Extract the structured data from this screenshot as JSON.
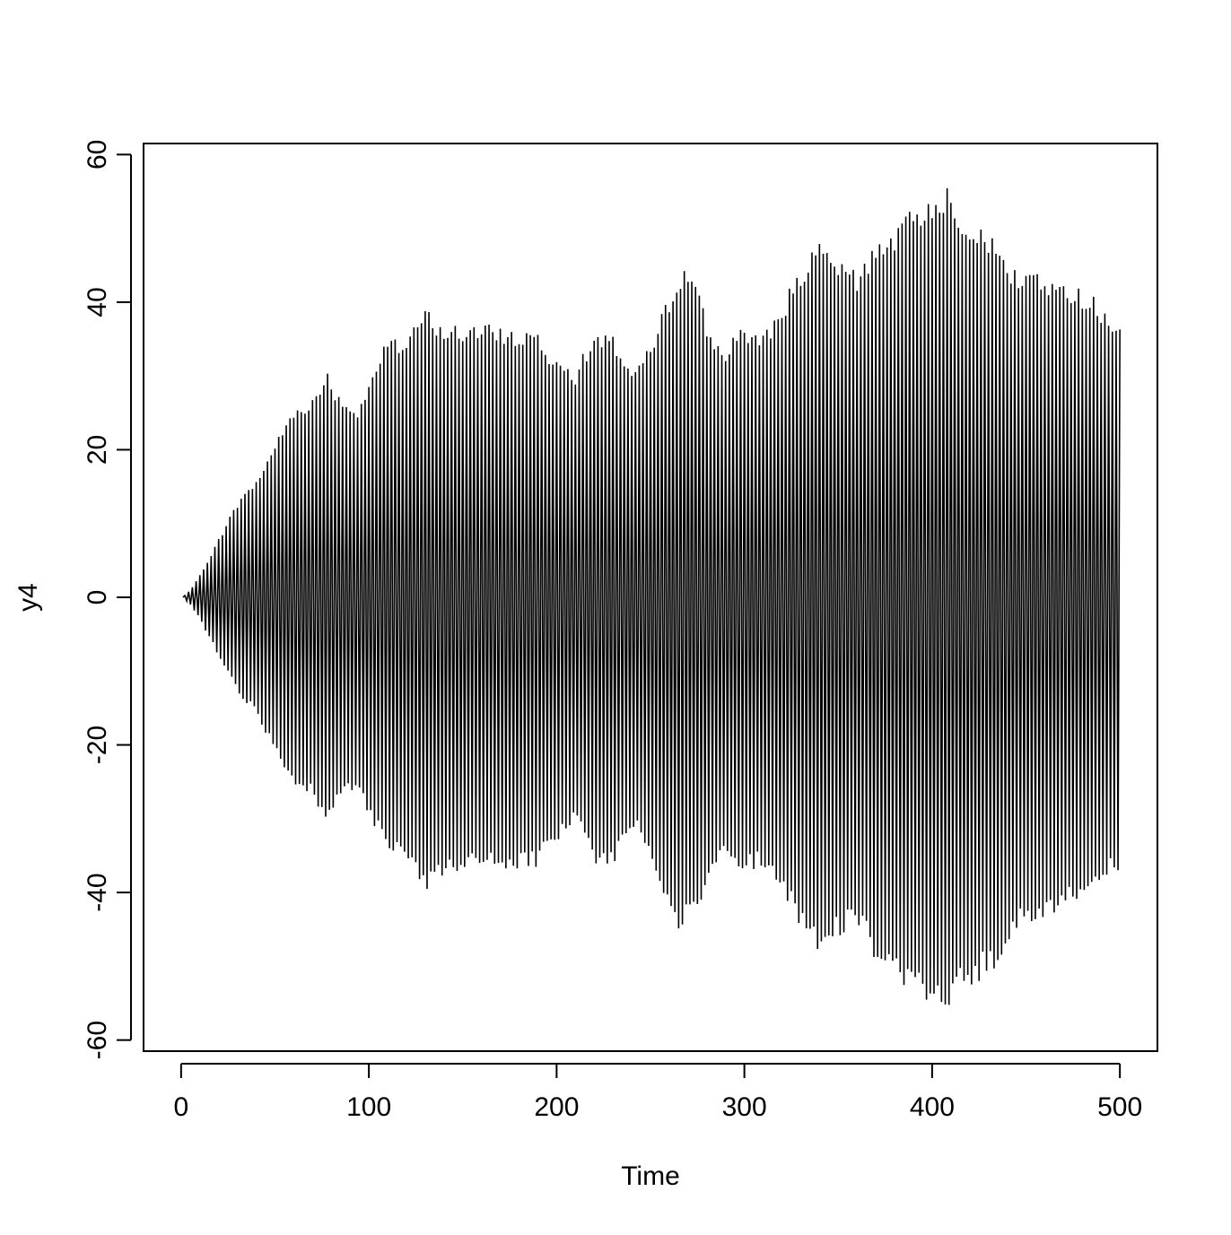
{
  "chart_data": {
    "type": "line",
    "title": "",
    "xlabel": "Time",
    "ylabel": "y4",
    "xlim": [
      -20,
      520
    ],
    "ylim": [
      -61.5,
      61.5
    ],
    "x_ticks": [
      0,
      100,
      200,
      300,
      400,
      500
    ],
    "y_ticks": [
      -60,
      -40,
      -20,
      0,
      20,
      40,
      60
    ],
    "x_tick_labels": [
      "0",
      "100",
      "200",
      "300",
      "400",
      "500"
    ],
    "y_tick_labels": [
      "-60",
      "-40",
      "-20",
      "0",
      "20",
      "40",
      "60"
    ],
    "grid": false,
    "legend": "none",
    "line_color": "#000000",
    "series": [
      {
        "description_of_shape": "alternating-sign oscillation every time step, amplitude envelope given below",
        "x_range": [
          1,
          500
        ],
        "envelope_time": [
          1,
          5,
          10,
          20,
          30,
          40,
          50,
          60,
          70,
          78,
          85,
          95,
          100,
          110,
          120,
          130,
          140,
          150,
          160,
          170,
          180,
          190,
          195,
          200,
          210,
          220,
          230,
          240,
          250,
          258,
          265,
          275,
          280,
          290,
          300,
          310,
          320,
          330,
          340,
          350,
          360,
          370,
          380,
          390,
          400,
          408,
          415,
          425,
          435,
          445,
          455,
          465,
          475,
          485,
          495,
          500
        ],
        "envelope_upper": [
          0,
          1,
          3,
          8,
          13,
          16,
          21,
          26,
          27,
          31,
          27,
          26,
          30,
          35,
          35,
          39.5,
          37,
          37,
          37,
          37,
          36,
          37,
          33,
          34,
          31,
          36,
          36,
          31,
          34,
          40,
          45,
          44,
          37,
          34,
          37,
          36,
          40,
          45,
          48,
          46,
          44,
          49,
          50,
          53,
          55,
          56,
          53,
          51,
          48,
          44,
          45,
          43,
          42,
          42,
          37,
          37
        ],
        "envelope_lower": [
          0,
          -1,
          -3,
          -8,
          -13,
          -16,
          -21,
          -26,
          -27,
          -31,
          -27,
          -26,
          -30,
          -35,
          -35,
          -40,
          -38,
          -37,
          -37,
          -37,
          -37,
          -37,
          -34,
          -33,
          -31,
          -36,
          -37,
          -31,
          -35,
          -41,
          -45,
          -44,
          -38,
          -36,
          -37,
          -37,
          -40,
          -45,
          -48,
          -46,
          -44,
          -50,
          -52,
          -54,
          -55,
          -57,
          -54,
          -52,
          -50,
          -45,
          -44,
          -43,
          -42,
          -41,
          -37,
          -38
        ]
      }
    ]
  }
}
